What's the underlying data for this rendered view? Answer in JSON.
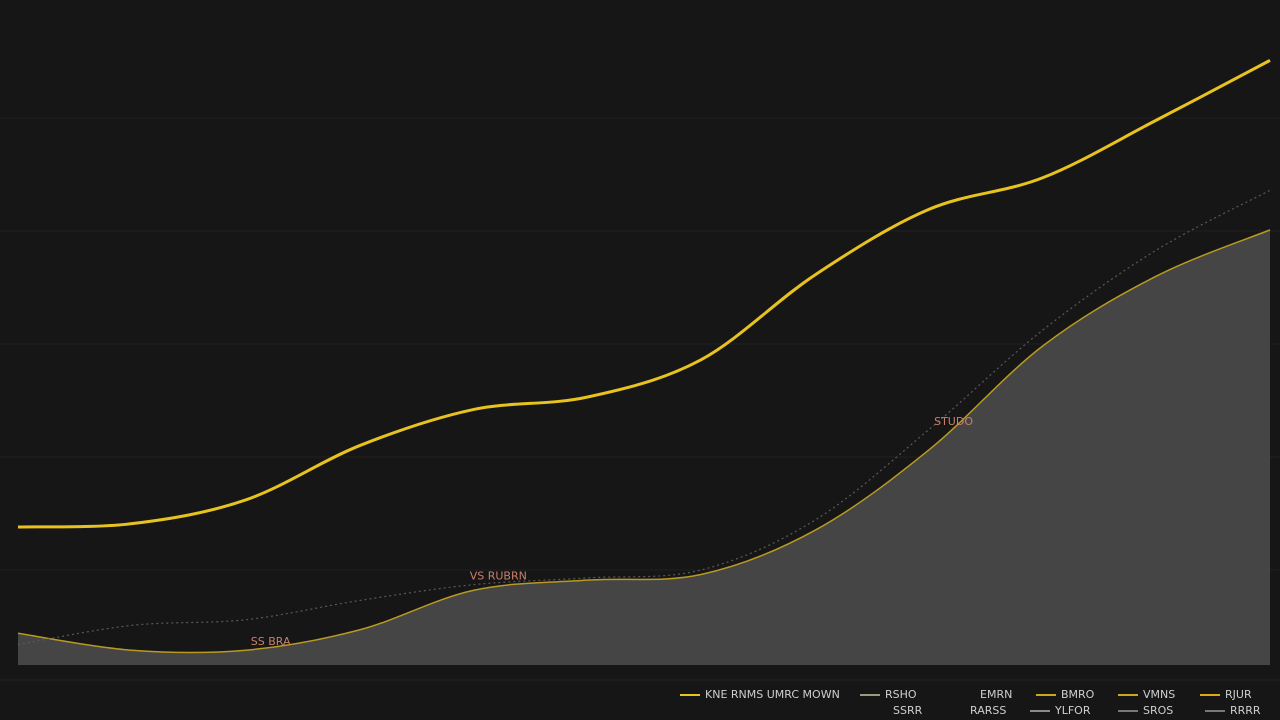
{
  "chart_data": {
    "type": "line",
    "categories": [
      null,
      null,
      null,
      null,
      null,
      null,
      null,
      null,
      null,
      null,
      null,
      null
    ],
    "series": [
      {
        "color": "#e8c21e",
        "style": "line",
        "values": [
          1.38,
          1.41,
          1.62,
          2.1,
          2.42,
          2.53,
          2.86,
          3.61,
          4.19,
          4.47,
          4.98,
          5.51
        ]
      },
      {
        "color": "#5a5a5a",
        "style": "dotted",
        "values": [
          0.34,
          0.51,
          0.56,
          0.73,
          0.87,
          0.93,
          1.0,
          1.44,
          2.24,
          3.12,
          3.83,
          4.36
        ]
      },
      {
        "color": "#b89a22",
        "fill": "#454545",
        "style": "area",
        "values": [
          0.44,
          0.29,
          0.29,
          0.47,
          0.82,
          0.91,
          0.96,
          1.35,
          2.06,
          2.98,
          3.6,
          4.01
        ]
      }
    ],
    "ylim": [
      0,
      6
    ],
    "yticks": [
      1,
      2,
      3,
      4,
      5
    ],
    "grid": true,
    "annotations": [
      {
        "text": "VS RUBRN",
        "series": 1,
        "index": 4
      },
      {
        "text": "SS BRA",
        "series": 2,
        "index": 2
      },
      {
        "text": "STUDO",
        "series": 1,
        "index": 8
      }
    ],
    "legend": [
      {
        "label": "KNE RNMS UMRC MOWN",
        "color": "#e8c21e"
      },
      {
        "label": "RSHO",
        "color": "#9a9a80"
      },
      {
        "label": "EMRN",
        "color": null
      },
      {
        "label": "BMRO",
        "color": "#c9a820"
      },
      {
        "label": "VMNS",
        "color": "#c9a820"
      },
      {
        "label": "RJUR",
        "color": "#e0a818"
      },
      {
        "label": "SSRR",
        "color": null
      },
      {
        "label": "RARSS",
        "color": null
      },
      {
        "label": "YLFOR",
        "color": "#8a8a8a"
      },
      {
        "label": "SROS",
        "color": "#777777"
      },
      {
        "label": "RRRR",
        "color": "#777777"
      }
    ]
  }
}
